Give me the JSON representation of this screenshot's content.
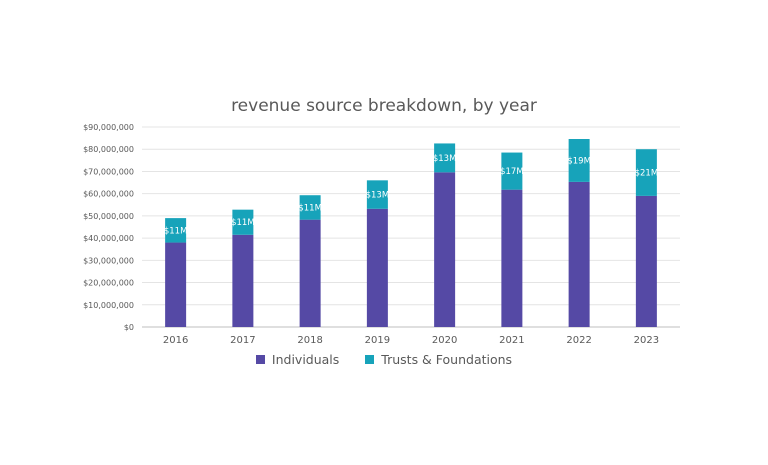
{
  "chart_data": {
    "type": "bar",
    "stacked": true,
    "title": "revenue source breakdown, by year",
    "categories": [
      "2016",
      "2017",
      "2018",
      "2019",
      "2020",
      "2021",
      "2022",
      "2023"
    ],
    "series": [
      {
        "name": "Individuals",
        "color": "#5549a5",
        "values": [
          38000000,
          41500000,
          48300000,
          53200000,
          69600000,
          61800000,
          65300000,
          59000000
        ]
      },
      {
        "name": "Trusts & Foundations",
        "color": "#17a3ba",
        "values": [
          11000000,
          11300000,
          11000000,
          12800000,
          13000000,
          16700000,
          19300000,
          21000000
        ],
        "data_labels": [
          "$11M",
          "$11M",
          "$11M",
          "$13M",
          "$13M",
          "$17M",
          "$19M",
          "$21M"
        ]
      }
    ],
    "ylim": [
      0,
      90000000
    ],
    "yticks": [
      0,
      10000000,
      20000000,
      30000000,
      40000000,
      50000000,
      60000000,
      70000000,
      80000000,
      90000000
    ],
    "ytick_labels": [
      "$0",
      "$10,000,000",
      "$20,000,000",
      "$30,000,000",
      "$40,000,000",
      "$50,000,000",
      "$60,000,000",
      "$70,000,000",
      "$80,000,000",
      "$90,000,000"
    ],
    "xlabel": "",
    "ylabel": "",
    "grid": true,
    "legend_position": "bottom"
  }
}
